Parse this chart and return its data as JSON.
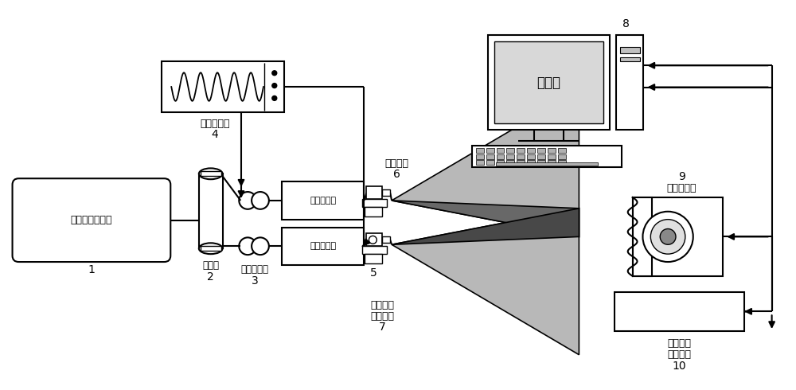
{
  "bg_color": "#ffffff",
  "line_color": "#000000",
  "dark_gray": "#686868",
  "mid_gray": "#909090",
  "light_gray": "#b8b8b8",
  "darkest_gray": "#484848",
  "labels": {
    "laser": "氦氖稳频激光器",
    "laser_num": "1",
    "beam_splitter": "分束器",
    "beam_splitter_num": "2",
    "polarization": "偏振控制器",
    "polarization_num": "3",
    "signal_gen": "信号发生器",
    "signal_gen_num": "4",
    "phase_mod": "相位调制器",
    "phase_mod_num": "5",
    "fiber": "单模光纤",
    "fiber_num": "6",
    "platform6_a": "六自由度",
    "platform6_b": "位移平台",
    "platform6_num": "7",
    "computer": "计算机",
    "computer_num": "8",
    "detector": "图像探测器",
    "detector_num": "9",
    "platform1_a": "单自由度",
    "platform1_b": "位移平台",
    "platform1_num": "10"
  }
}
